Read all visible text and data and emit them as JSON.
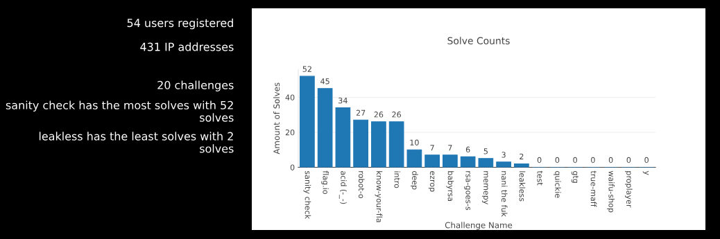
{
  "chart_data": [
    {
      "type": "other",
      "annotations": [
        "54 users registered",
        "431 IP addresses",
        "20 challenges",
        "sanity check has the most solves with 52 solves",
        "leakless has the least solves with 2 solves"
      ]
    },
    {
      "type": "bar",
      "title": "Solve Counts",
      "xlabel": "Challenge Name",
      "ylabel": "Amount of Solves",
      "categories": [
        "sanity check",
        "flag.io",
        "acid (-_-)",
        "robot-o",
        "know-your-fla",
        "intro",
        "deep",
        "ezrop",
        "babyrsa",
        "rsa-goes-s",
        "memepy",
        "nani the fuk",
        "leakless",
        "test",
        "quickie",
        "gtg",
        "true-maff",
        "waifu-shop",
        "proplayer",
        "y"
      ],
      "values": [
        52,
        45,
        34,
        27,
        26,
        26,
        10,
        7,
        7,
        6,
        5,
        3,
        2,
        0,
        0,
        0,
        0,
        0,
        0,
        0
      ],
      "color": "#1f77b4",
      "data_labels": true,
      "ylim": [
        0,
        56
      ],
      "yticks": [
        0,
        20,
        40
      ],
      "grid": "y"
    }
  ]
}
